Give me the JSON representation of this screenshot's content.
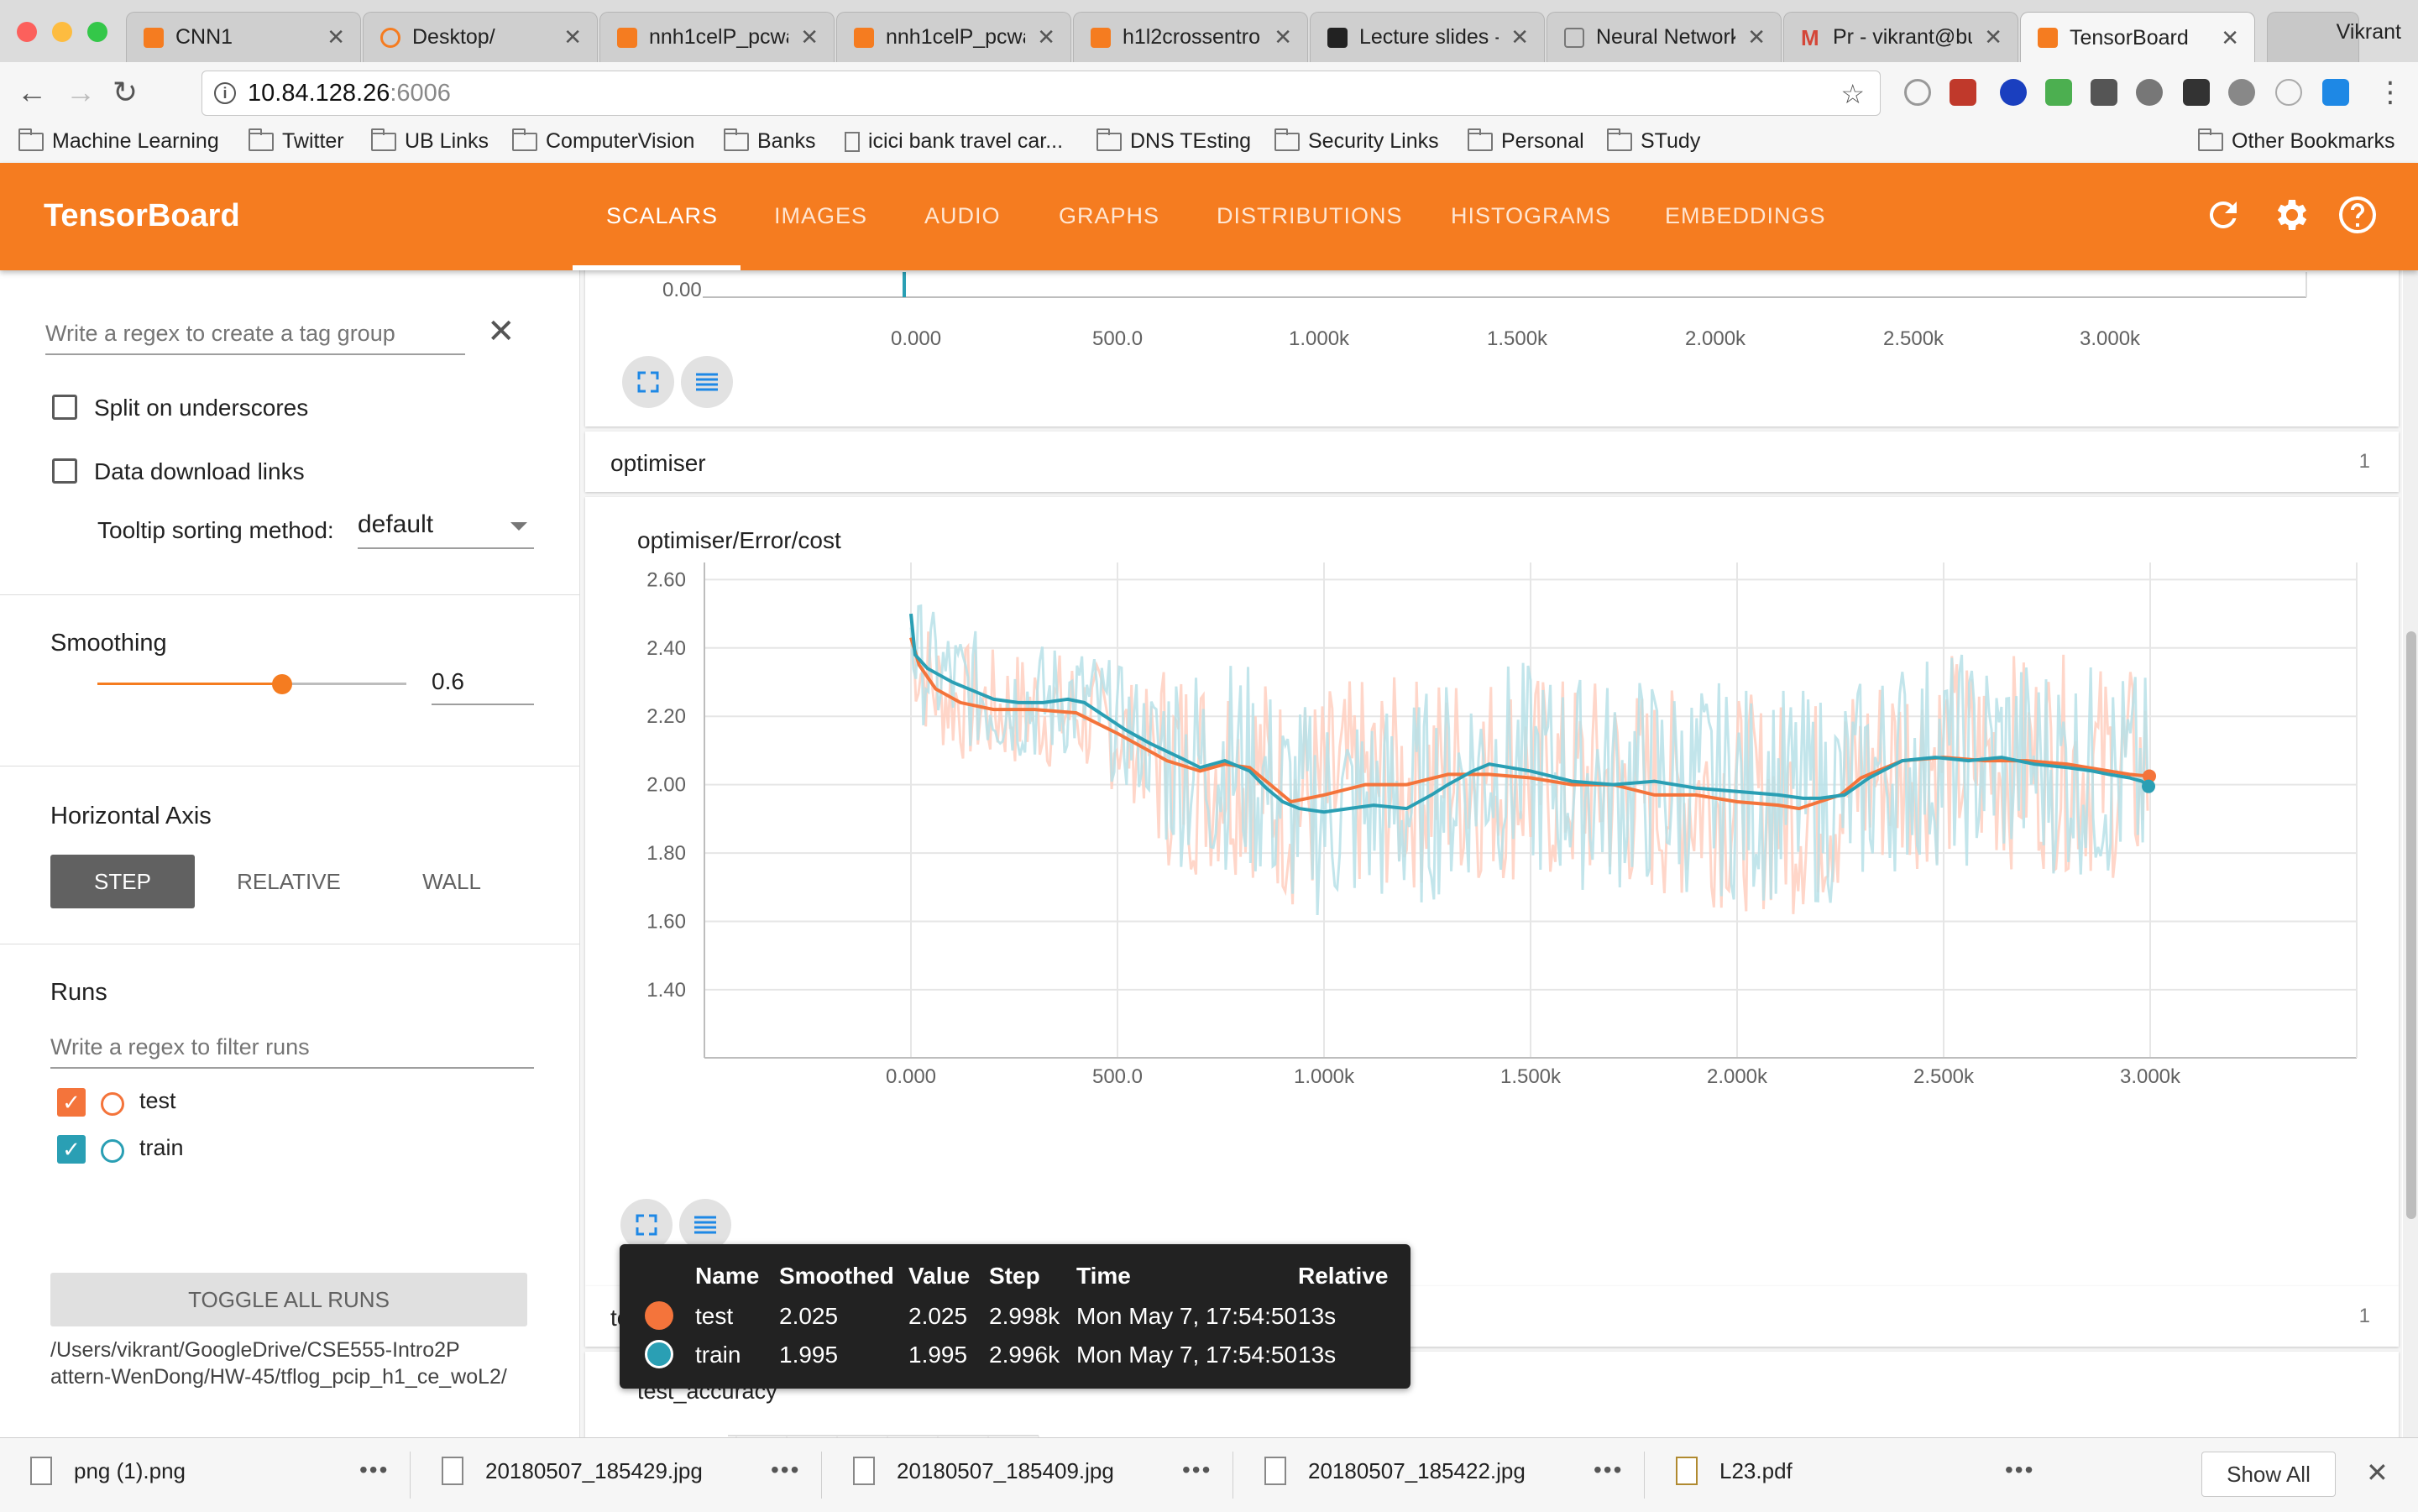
{
  "browser": {
    "tabs": [
      {
        "title": "CNN1",
        "favicon_color": "#f57c20"
      },
      {
        "title": "Desktop/",
        "favicon_color": "#f57c20"
      },
      {
        "title": "nnh1celP_pcwa",
        "favicon_color": "#f57c20"
      },
      {
        "title": "nnh1celP_pcwa",
        "favicon_color": "#f57c20"
      },
      {
        "title": "h1l2crossentro",
        "favicon_color": "#f57c20"
      },
      {
        "title": "Lecture slides -",
        "favicon_color": "#222222"
      },
      {
        "title": "Neural Network",
        "favicon_color": "#888888"
      },
      {
        "title": "Pr - vikrant@bu",
        "favicon_color": "#d44638"
      },
      {
        "title": "TensorBoard",
        "favicon_color": "#f57c20"
      }
    ],
    "profile_name": "Vikrant",
    "url_host": "10.84.128.26",
    "url_port": ":6006",
    "bookmarks": [
      "Machine Learning",
      "Twitter",
      "UB Links",
      "ComputerVision",
      "Banks",
      "icici bank travel car...",
      "DNS TEsting",
      "Security Links",
      "Personal",
      "STudy"
    ],
    "other_bookmarks": "Other Bookmarks"
  },
  "header": {
    "title": "TensorBoard",
    "tabs": [
      "SCALARS",
      "IMAGES",
      "AUDIO",
      "GRAPHS",
      "DISTRIBUTIONS",
      "HISTOGRAMS",
      "EMBEDDINGS"
    ],
    "active_tab": "SCALARS",
    "color": "#f57c20"
  },
  "sidebar": {
    "tag_regex_placeholder": "Write a regex to create a tag group",
    "split_on_underscores": "Split on underscores",
    "data_download_links": "Data download links",
    "tooltip_sorting_label": "Tooltip sorting method:",
    "tooltip_sorting_value": "default",
    "smoothing_title": "Smoothing",
    "smoothing_value": "0.6",
    "horizontal_axis_title": "Horizontal Axis",
    "axis_options": [
      "STEP",
      "RELATIVE",
      "WALL"
    ],
    "axis_selected": "STEP",
    "runs_title": "Runs",
    "runs_filter_placeholder": "Write a regex to filter runs",
    "runs": [
      {
        "name": "test",
        "color": "#f4743b"
      },
      {
        "name": "train",
        "color": "#2a9fb4"
      }
    ],
    "toggle_all_runs": "TOGGLE ALL RUNS",
    "logdir_line1": "/Users/vikrant/GoogleDrive/CSE555-Intro2P",
    "logdir_line2": "attern-WenDong/HW-45/tflog_pcip_h1_ce_woL2/"
  },
  "main": {
    "top_chart_partial": {
      "y_tick": "0.00",
      "x_ticks": [
        "0.000",
        "500.0",
        "1.000k",
        "1.500k",
        "2.000k",
        "2.500k",
        "3.000k"
      ]
    },
    "group_optimiser": {
      "name": "optimiser",
      "count": "1"
    },
    "group_test_accuracy": {
      "name": "test_accuracy",
      "count": "1"
    },
    "next_chart_title": "test_accuracy"
  },
  "chart_data": {
    "type": "line",
    "title": "optimiser/Error/cost",
    "y_ticks": [
      "2.60",
      "2.40",
      "2.20",
      "2.00",
      "1.80",
      "1.60",
      "1.40"
    ],
    "x_ticks": [
      "0.000",
      "500.0",
      "1.000k",
      "1.500k",
      "2.000k",
      "2.500k",
      "3.000k"
    ],
    "xlim": [
      -500,
      3500
    ],
    "ylim": [
      1.25,
      2.65
    ],
    "grid": true,
    "series": [
      {
        "name": "test",
        "color": "#f4743b",
        "smoothed": {
          "x": [
            0,
            20,
            60,
            120,
            200,
            300,
            400,
            450,
            500,
            560,
            620,
            700,
            760,
            820,
            870,
            920,
            1000,
            1100,
            1200,
            1300,
            1400,
            1500,
            1600,
            1700,
            1800,
            1900,
            2000,
            2100,
            2150,
            2200,
            2250,
            2300,
            2400,
            2500,
            2600,
            2700,
            2800,
            2850,
            2900,
            2950,
            2998
          ],
          "y": [
            2.43,
            2.35,
            2.28,
            2.24,
            2.22,
            2.22,
            2.21,
            2.18,
            2.15,
            2.11,
            2.07,
            2.04,
            2.06,
            2.05,
            2.0,
            1.95,
            1.97,
            2.0,
            2.0,
            2.03,
            2.03,
            2.02,
            2.0,
            2.0,
            1.97,
            1.97,
            1.95,
            1.94,
            1.93,
            1.95,
            1.97,
            2.02,
            2.07,
            2.08,
            2.07,
            2.07,
            2.06,
            2.05,
            2.04,
            2.03,
            2.025
          ]
        },
        "raw_range_y": [
          1.28,
          2.6
        ]
      },
      {
        "name": "train",
        "color": "#2a9fb4",
        "smoothed": {
          "x": [
            0,
            10,
            40,
            100,
            160,
            200,
            260,
            320,
            380,
            420,
            470,
            520,
            580,
            650,
            700,
            760,
            820,
            860,
            900,
            940,
            1000,
            1060,
            1120,
            1200,
            1260,
            1300,
            1360,
            1400,
            1500,
            1600,
            1700,
            1800,
            1900,
            2000,
            2100,
            2160,
            2200,
            2260,
            2320,
            2400,
            2480,
            2560,
            2640,
            2720,
            2800,
            2860,
            2900,
            2950,
            2980,
            2996
          ],
          "y": [
            2.5,
            2.38,
            2.34,
            2.3,
            2.27,
            2.25,
            2.24,
            2.24,
            2.25,
            2.24,
            2.2,
            2.16,
            2.12,
            2.08,
            2.05,
            2.07,
            2.04,
            1.99,
            1.95,
            1.93,
            1.92,
            1.93,
            1.94,
            1.93,
            1.97,
            2.0,
            2.04,
            2.06,
            2.04,
            2.01,
            2.0,
            2.01,
            1.99,
            1.98,
            1.97,
            1.96,
            1.96,
            1.97,
            2.02,
            2.07,
            2.08,
            2.07,
            2.08,
            2.06,
            2.05,
            2.04,
            2.03,
            2.02,
            2.01,
            1.995
          ]
        },
        "raw_range_y": [
          1.32,
          2.62
        ]
      }
    ]
  },
  "tooltip": {
    "headers": [
      "Name",
      "Smoothed",
      "Value",
      "Step",
      "Time",
      "Relative"
    ],
    "rows": [
      {
        "name": "test",
        "color": "#f4743b",
        "smoothed": "2.025",
        "value": "2.025",
        "step": "2.998k",
        "time": "Mon May 7, 17:54:50",
        "relative": "13s"
      },
      {
        "name": "train",
        "color": "#2a9fb4",
        "smoothed": "1.995",
        "value": "1.995",
        "step": "2.996k",
        "time": "Mon May 7, 17:54:50",
        "relative": "13s"
      }
    ]
  },
  "downloads": {
    "items": [
      "png (1).png",
      "20180507_185429.jpg",
      "20180507_185409.jpg",
      "20180507_185422.jpg",
      "L23.pdf"
    ],
    "show_all": "Show All"
  }
}
